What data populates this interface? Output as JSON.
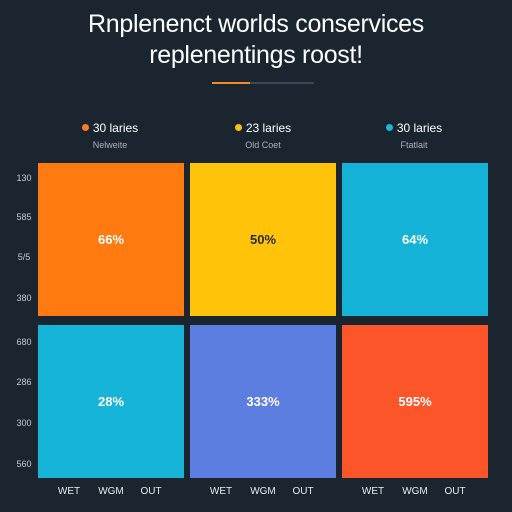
{
  "chart_data": {
    "type": "heatmap",
    "title": [
      "Rnplenenct worlds conservices",
      "replenentings roost!"
    ],
    "legend": [
      {
        "name": "30 laries",
        "sub": "Nelweite",
        "color": "#ff7a22"
      },
      {
        "name": "23 laries",
        "sub": "Old Coet",
        "color": "#ffbf10"
      },
      {
        "name": "30 laries",
        "sub": "Ftatlait",
        "color": "#1ab6dc"
      }
    ],
    "y_ticks": [
      "130",
      "585",
      "5/5",
      "380",
      "680",
      "286",
      "300",
      "560"
    ],
    "x_ticks": [
      "WET",
      "WGM",
      "OUT"
    ],
    "cells": [
      {
        "label": "66%",
        "color": "#ff7a10",
        "dark": false
      },
      {
        "label": "50%",
        "color": "#ffc40a",
        "dark": true
      },
      {
        "label": "64%",
        "color": "#14b2d6",
        "dark": false
      },
      {
        "label": "28%",
        "color": "#16b4d8",
        "dark": false
      },
      {
        "label": "333%",
        "color": "#5c7ee0",
        "dark": false
      },
      {
        "label": "595%",
        "color": "#fc552a",
        "dark": false
      }
    ],
    "accent_color": "#f28a26"
  }
}
